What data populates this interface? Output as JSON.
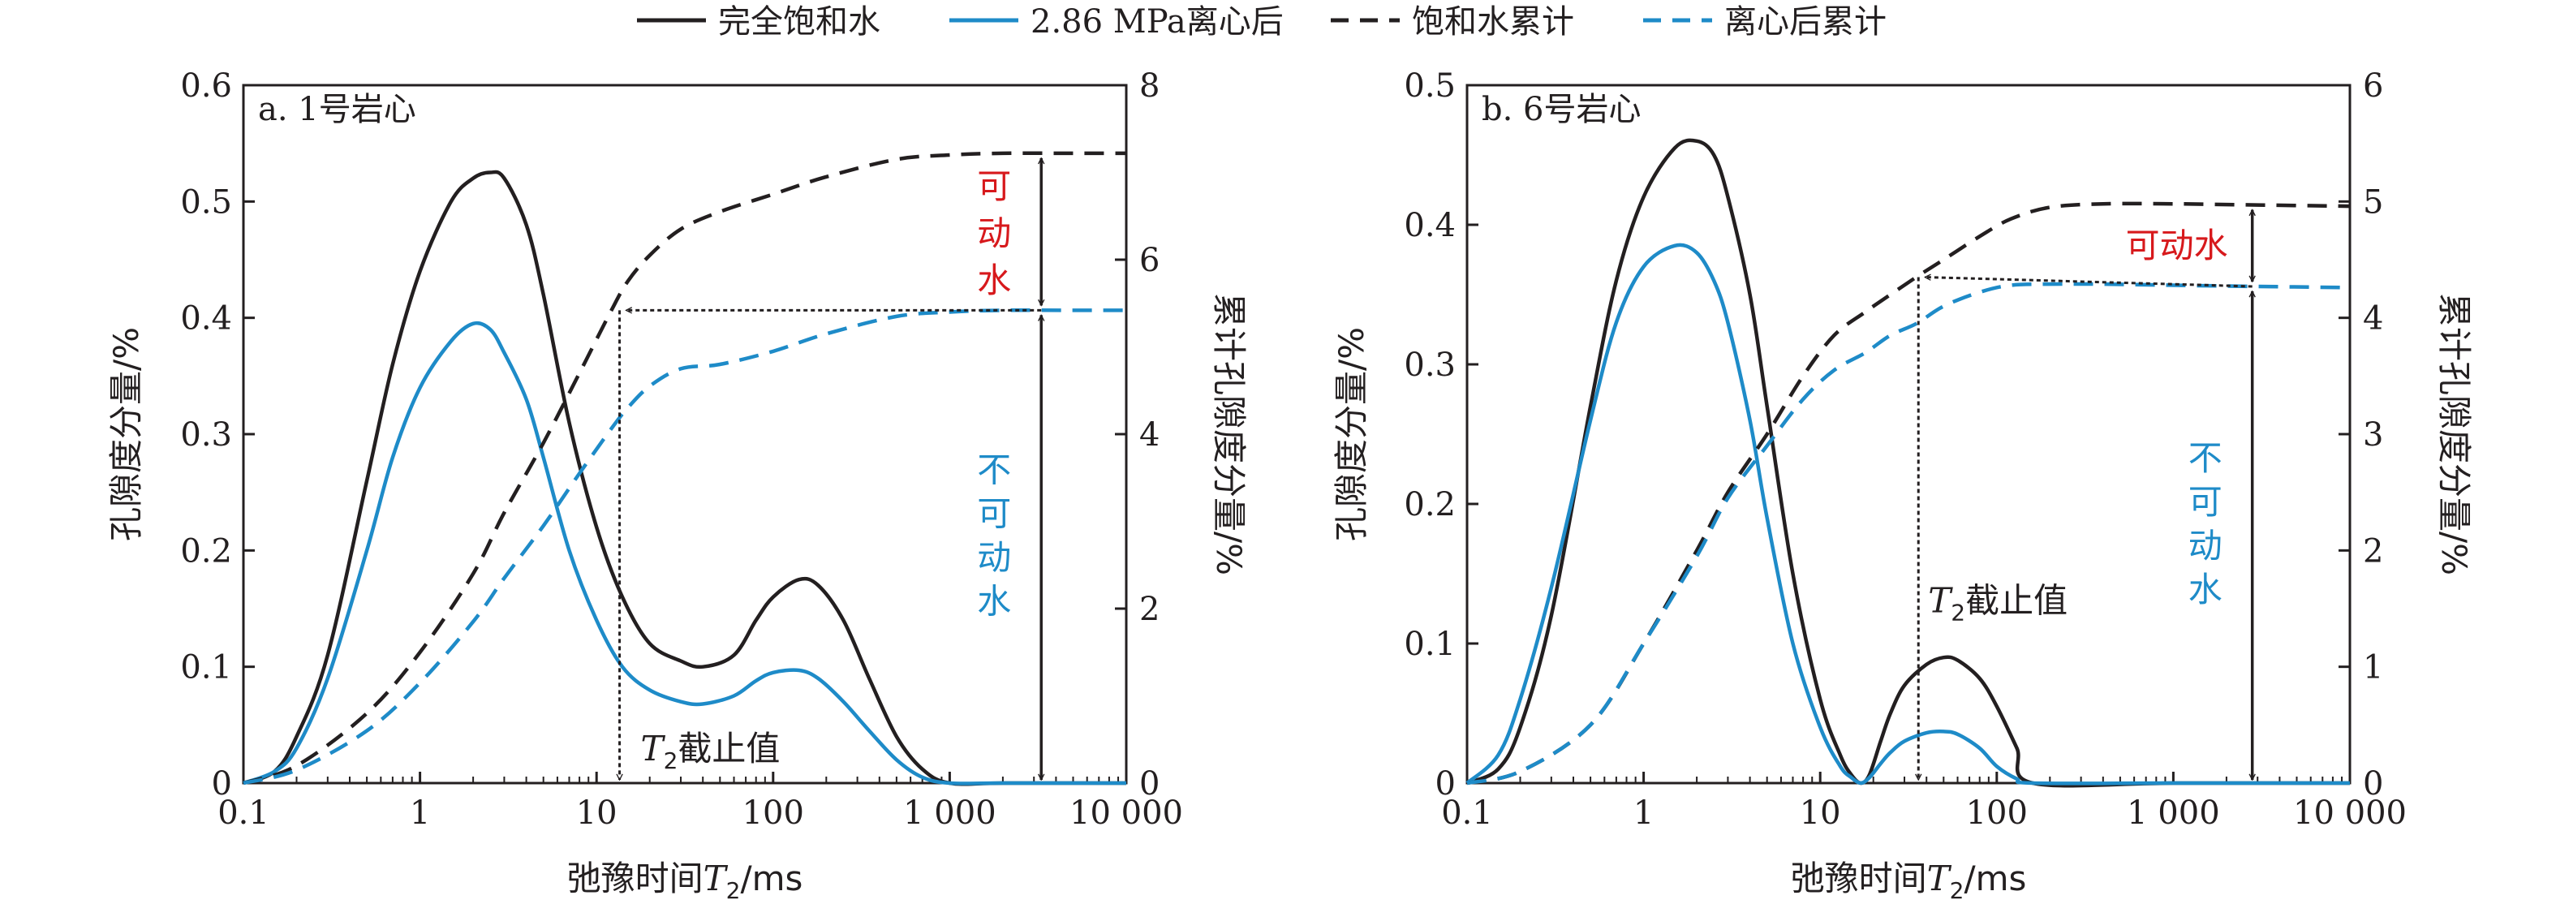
{
  "legend": [
    {
      "label": "完全饱和水",
      "color": "#231f20",
      "dash": false
    },
    {
      "label": "2.86 MPa离心后",
      "color": "#1e8bc8",
      "dash": false
    },
    {
      "label": "饱和水累计",
      "color": "#231f20",
      "dash": true
    },
    {
      "label": "离心后累计",
      "color": "#1e8bc8",
      "dash": true
    }
  ],
  "colors": {
    "black": "#231f20",
    "blue": "#1e8bc8",
    "red": "#d7191c"
  },
  "chart_data": [
    {
      "type": "line",
      "title": "a. 1号岩心",
      "xlabel": "弛豫时间",
      "xlabel_italic": "T",
      "xlabel_sub": "2",
      "xlabel_unit": "/ms",
      "ylabel_left": "孔隙度分量/%",
      "ylabel_right": "累计孔隙度分量/%",
      "xscale": "log",
      "xlim": [
        0.1,
        10000
      ],
      "ylim_left": [
        0,
        0.6
      ],
      "ylim_right": [
        0,
        8
      ],
      "xticks": [
        {
          "v": 0.1,
          "label": "0.1"
        },
        {
          "v": 1,
          "label": "1"
        },
        {
          "v": 10,
          "label": "10"
        },
        {
          "v": 100,
          "label": "100"
        },
        {
          "v": 1000,
          "label": "1 000"
        },
        {
          "v": 10000,
          "label": "10 000"
        }
      ],
      "yticks_left": [
        {
          "v": 0,
          "label": "0"
        },
        {
          "v": 0.1,
          "label": "0.1"
        },
        {
          "v": 0.2,
          "label": "0.2"
        },
        {
          "v": 0.3,
          "label": "0.3"
        },
        {
          "v": 0.4,
          "label": "0.4"
        },
        {
          "v": 0.5,
          "label": "0.5"
        },
        {
          "v": 0.6,
          "label": "0.6"
        }
      ],
      "yticks_right": [
        {
          "v": 0,
          "label": "0"
        },
        {
          "v": 2,
          "label": "2"
        },
        {
          "v": 4,
          "label": "4"
        },
        {
          "v": 6,
          "label": "6"
        },
        {
          "v": 8,
          "label": "8"
        }
      ],
      "series": [
        {
          "name": "完全饱和水",
          "axis": "left",
          "color": "#231f20",
          "dash": false,
          "x": [
            0.1,
            0.15,
            0.2,
            0.3,
            0.5,
            0.7,
            1,
            1.5,
            2,
            2.5,
            3,
            4,
            5,
            7,
            10,
            14,
            20,
            30,
            40,
            60,
            80,
            100,
            140,
            180,
            250,
            350,
            500,
            700,
            1000,
            2000,
            10000
          ],
          "y": [
            0,
            0.01,
            0.04,
            0.11,
            0.26,
            0.36,
            0.44,
            0.5,
            0.52,
            0.525,
            0.52,
            0.48,
            0.42,
            0.31,
            0.22,
            0.16,
            0.12,
            0.105,
            0.1,
            0.11,
            0.14,
            0.16,
            0.175,
            0.17,
            0.14,
            0.09,
            0.04,
            0.012,
            0,
            0,
            0
          ]
        },
        {
          "name": "2.86 MPa离心后",
          "axis": "left",
          "color": "#1e8bc8",
          "dash": false,
          "x": [
            0.1,
            0.15,
            0.2,
            0.3,
            0.5,
            0.7,
            1,
            1.5,
            2,
            2.5,
            3,
            4,
            5,
            7,
            10,
            14,
            20,
            30,
            40,
            60,
            80,
            100,
            140,
            180,
            250,
            350,
            500,
            700,
            1000,
            2000,
            10000
          ],
          "y": [
            0,
            0.01,
            0.03,
            0.09,
            0.2,
            0.28,
            0.34,
            0.38,
            0.395,
            0.39,
            0.37,
            0.33,
            0.28,
            0.2,
            0.14,
            0.1,
            0.08,
            0.07,
            0.068,
            0.075,
            0.088,
            0.095,
            0.097,
            0.09,
            0.07,
            0.045,
            0.02,
            0.005,
            0,
            0,
            0
          ]
        },
        {
          "name": "饱和水累计",
          "axis": "right",
          "color": "#231f20",
          "dash": true,
          "x": [
            0.1,
            0.2,
            0.5,
            1,
            2,
            3,
            5,
            8,
            12,
            15,
            20,
            30,
            50,
            100,
            200,
            500,
            1000,
            2000,
            5000,
            10000
          ],
          "y": [
            0,
            0.2,
            0.8,
            1.5,
            2.4,
            3.1,
            3.9,
            4.7,
            5.4,
            5.75,
            6.05,
            6.35,
            6.55,
            6.75,
            6.95,
            7.15,
            7.2,
            7.22,
            7.22,
            7.22
          ]
        },
        {
          "name": "离心后累计",
          "axis": "right",
          "color": "#1e8bc8",
          "dash": true,
          "x": [
            0.1,
            0.2,
            0.5,
            1,
            2,
            3,
            5,
            8,
            12,
            15,
            20,
            30,
            50,
            100,
            200,
            500,
            1000,
            2000,
            5000,
            10000
          ],
          "y": [
            0,
            0.15,
            0.6,
            1.15,
            1.85,
            2.35,
            2.95,
            3.55,
            4.05,
            4.3,
            4.55,
            4.75,
            4.8,
            4.95,
            5.15,
            5.35,
            5.4,
            5.42,
            5.42,
            5.42
          ]
        }
      ],
      "annotations": {
        "cutoff_label": "T",
        "cutoff_sub": "2",
        "cutoff_text": "截止值",
        "cutoff_x": 13.5,
        "sat_total": 7.22,
        "cent_total": 5.42,
        "cutoff_cum": 5.42,
        "arrow_x": 3300,
        "movable": [
          "可",
          "动",
          "水"
        ],
        "immovable": [
          "不",
          "可",
          "动",
          "水"
        ]
      }
    },
    {
      "type": "line",
      "title": "b. 6号岩心",
      "xlabel": "弛豫时间",
      "xlabel_italic": "T",
      "xlabel_sub": "2",
      "xlabel_unit": "/ms",
      "ylabel_left": "孔隙度分量/%",
      "ylabel_right": "累计孔隙度分量/%",
      "xscale": "log",
      "xlim": [
        0.1,
        10000
      ],
      "ylim_left": [
        0,
        0.5
      ],
      "ylim_right": [
        0,
        6
      ],
      "xticks": [
        {
          "v": 0.1,
          "label": "0.1"
        },
        {
          "v": 1,
          "label": "1"
        },
        {
          "v": 10,
          "label": "10"
        },
        {
          "v": 100,
          "label": "100"
        },
        {
          "v": 1000,
          "label": "1 000"
        },
        {
          "v": 10000,
          "label": "10 000"
        }
      ],
      "yticks_left": [
        {
          "v": 0,
          "label": "0"
        },
        {
          "v": 0.1,
          "label": "0.1"
        },
        {
          "v": 0.2,
          "label": "0.2"
        },
        {
          "v": 0.3,
          "label": "0.3"
        },
        {
          "v": 0.4,
          "label": "0.4"
        },
        {
          "v": 0.5,
          "label": "0.5"
        }
      ],
      "yticks_right": [
        {
          "v": 0,
          "label": "0"
        },
        {
          "v": 1,
          "label": "1"
        },
        {
          "v": 2,
          "label": "2"
        },
        {
          "v": 3,
          "label": "3"
        },
        {
          "v": 4,
          "label": "4"
        },
        {
          "v": 5,
          "label": "5"
        },
        {
          "v": 6,
          "label": "6"
        }
      ],
      "series": [
        {
          "name": "完全饱和水",
          "axis": "left",
          "color": "#231f20",
          "dash": false,
          "x": [
            0.1,
            0.15,
            0.2,
            0.3,
            0.5,
            0.7,
            1,
            1.5,
            2,
            2.5,
            3,
            4,
            5,
            7,
            10,
            13,
            15,
            17,
            19,
            22,
            25,
            30,
            40,
            50,
            60,
            80,
            100,
            130,
            160,
            1000,
            10000
          ],
          "y": [
            0,
            0.01,
            0.04,
            0.12,
            0.27,
            0.36,
            0.42,
            0.455,
            0.46,
            0.45,
            0.42,
            0.35,
            0.27,
            0.15,
            0.06,
            0.02,
            0.006,
            0,
            0.006,
            0.03,
            0.05,
            0.07,
            0.085,
            0.09,
            0.088,
            0.075,
            0.055,
            0.025,
            0,
            0,
            0
          ]
        },
        {
          "name": "2.86 MPa离心后",
          "axis": "left",
          "color": "#1e8bc8",
          "dash": false,
          "x": [
            0.1,
            0.15,
            0.2,
            0.3,
            0.5,
            0.7,
            1,
            1.5,
            2,
            2.5,
            3,
            4,
            5,
            7,
            10,
            13,
            15,
            17,
            19,
            22,
            25,
            30,
            40,
            50,
            60,
            80,
            100,
            130,
            160,
            1000,
            10000
          ],
          "y": [
            0,
            0.02,
            0.06,
            0.14,
            0.26,
            0.33,
            0.37,
            0.385,
            0.38,
            0.36,
            0.33,
            0.26,
            0.19,
            0.1,
            0.04,
            0.012,
            0.004,
            0,
            0.004,
            0.014,
            0.022,
            0.03,
            0.036,
            0.037,
            0.035,
            0.025,
            0.012,
            0.003,
            0,
            0,
            0
          ]
        },
        {
          "name": "饱和水累计",
          "axis": "right",
          "color": "#231f20",
          "dash": true,
          "x": [
            0.1,
            0.2,
            0.5,
            1,
            2,
            3,
            5,
            8,
            12,
            18,
            25,
            35,
            50,
            80,
            120,
            200,
            400,
            1000,
            3000,
            10000
          ],
          "y": [
            0,
            0.1,
            0.5,
            1.2,
            2.0,
            2.5,
            3.0,
            3.5,
            3.85,
            4.05,
            4.2,
            4.35,
            4.5,
            4.7,
            4.85,
            4.95,
            4.98,
            4.98,
            4.97,
            4.96
          ]
        },
        {
          "name": "离心后累计",
          "axis": "right",
          "color": "#1e8bc8",
          "dash": true,
          "x": [
            0.1,
            0.2,
            0.5,
            1,
            2,
            3,
            5,
            8,
            12,
            18,
            25,
            35,
            50,
            80,
            120,
            200,
            400,
            1000,
            3000,
            10000
          ],
          "y": [
            0,
            0.1,
            0.5,
            1.2,
            1.95,
            2.45,
            2.9,
            3.3,
            3.55,
            3.7,
            3.85,
            3.95,
            4.1,
            4.22,
            4.28,
            4.29,
            4.29,
            4.28,
            4.27,
            4.26
          ]
        }
      ],
      "annotations": {
        "cutoff_label": "T",
        "cutoff_sub": "2",
        "cutoff_text": "截止值",
        "cutoff_x": 36,
        "sat_total": 4.97,
        "cent_total": 4.27,
        "cutoff_cum": 4.35,
        "arrow_x": 2800,
        "movable": [
          "可动水"
        ],
        "immovable": [
          "不",
          "可",
          "动",
          "水"
        ]
      }
    }
  ]
}
